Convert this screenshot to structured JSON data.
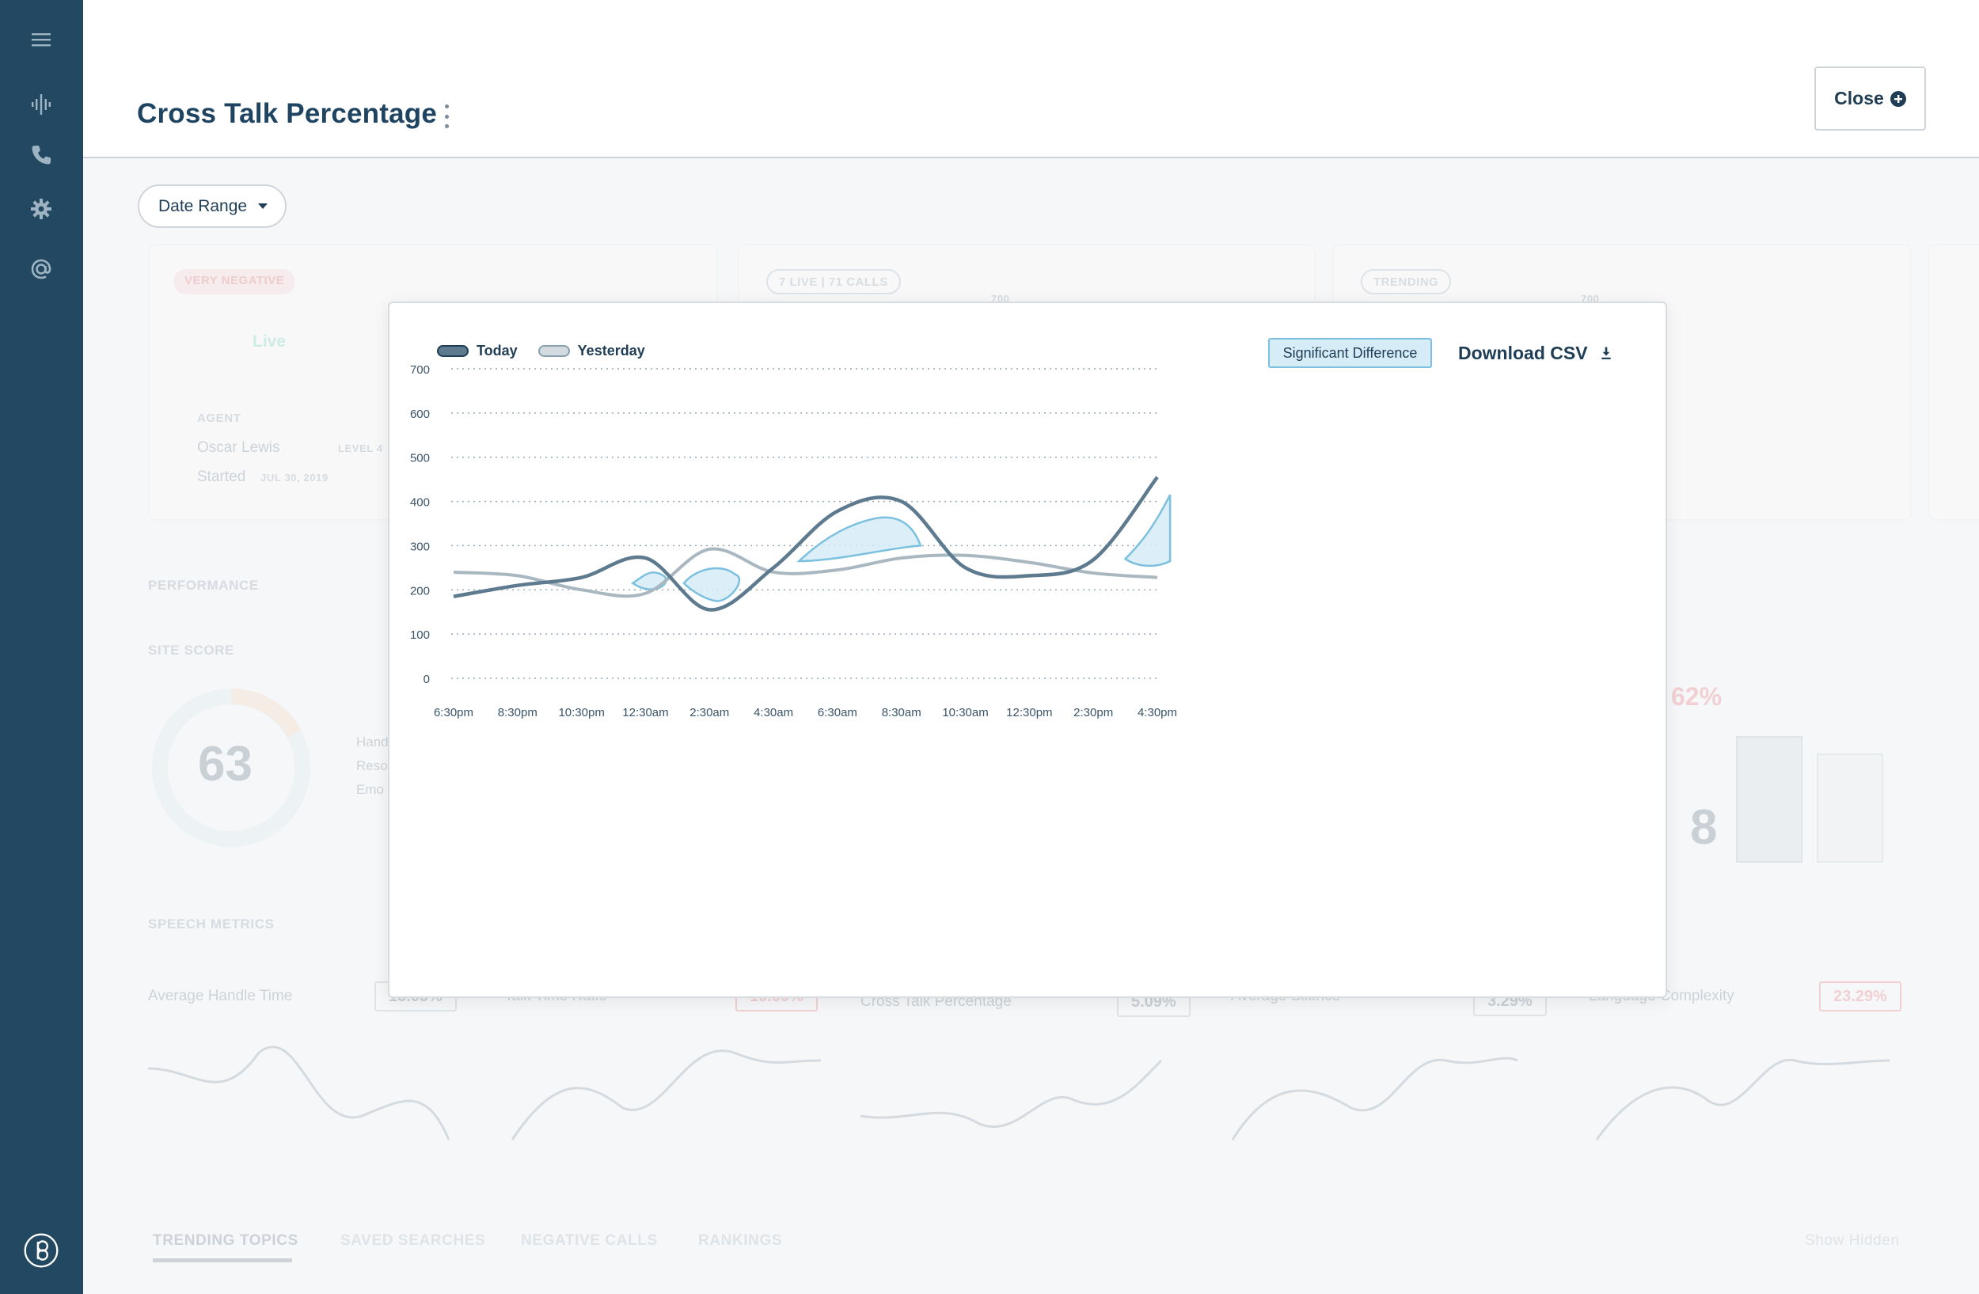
{
  "page": {
    "title": "Cross Talk Percentage",
    "close_label": "Close",
    "date_range_label": "Date Range"
  },
  "sidebar": {
    "icons": [
      "menu-icon",
      "waveform-icon",
      "phone-icon",
      "gear-icon",
      "at-icon",
      "logo-icon"
    ]
  },
  "background": {
    "card1": {
      "badge": "VERY NEGATIVE",
      "live": "Live",
      "agent_label": "AGENT",
      "agent_name": "Oscar Lewis",
      "agent_level": "LEVEL 4",
      "started_label": "Started",
      "started_date": "JUL 30, 2019"
    },
    "card2": {
      "badge": "7 LIVE | 71 CALLS",
      "tick": "700"
    },
    "card3": {
      "badge": "TRENDING",
      "tick": "700"
    },
    "performance_label": "PERFORMANCE",
    "site_score_label": "SITE SCORE",
    "site_score_value": "63",
    "site_score_legend": [
      "Hand",
      "Reso",
      "Emo"
    ],
    "right_percent": "62%",
    "right_value": "8",
    "speech_metrics_label": "SPEECH METRICS",
    "metrics": [
      {
        "name": "Average Handle Time",
        "delta": "13.05%"
      },
      {
        "name": "Talk Time Ratio",
        "delta": "10.09%"
      },
      {
        "name": "Cross Talk Percentage",
        "delta": "5.09%"
      },
      {
        "name": "Average Silence",
        "delta": "3.29%"
      },
      {
        "name": "Language Complexity",
        "delta": "23.29%"
      }
    ],
    "tabs": [
      "TRENDING TOPICS",
      "SAVED SEARCHES",
      "NEGATIVE CALLS",
      "RANKINGS"
    ],
    "show_hidden": "Show Hidden"
  },
  "modal": {
    "legend": [
      {
        "name": "Today",
        "color": "#5d7a8e"
      },
      {
        "name": "Yesterday",
        "color": "#c3cdd4"
      }
    ],
    "significant_difference_label": "Significant Difference",
    "download_label": "Download CSV"
  },
  "chart_data": {
    "type": "line",
    "x": [
      "6:30pm",
      "8:30pm",
      "10:30pm",
      "12:30am",
      "2:30am",
      "4:30am",
      "6:30am",
      "8:30am",
      "10:30am",
      "12:30pm",
      "2:30pm",
      "4:30pm"
    ],
    "ylim": [
      0,
      700
    ],
    "yticks": [
      0,
      100,
      200,
      300,
      400,
      500,
      600,
      700
    ],
    "grid": true,
    "legend_position": "top-left",
    "series": [
      {
        "name": "Today",
        "color": "#5d7a8e",
        "values": [
          185,
          210,
          228,
          272,
          155,
          250,
          378,
          400,
          250,
          232,
          268,
          455
        ]
      },
      {
        "name": "Yesterday",
        "color": "#a9b7c1",
        "values": [
          240,
          232,
          200,
          192,
          292,
          240,
          245,
          272,
          278,
          262,
          238,
          228
        ]
      }
    ],
    "significant_difference_color": "#d6ecf7"
  }
}
